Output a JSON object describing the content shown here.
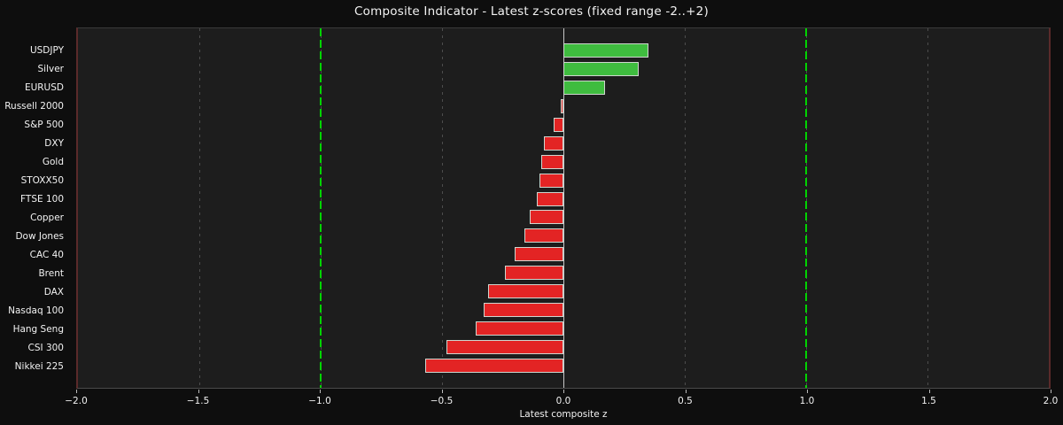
{
  "chart_data": {
    "type": "bar",
    "orientation": "horizontal",
    "title": "Composite Indicator - Latest z-scores (fixed range -2..+2)",
    "xlabel": "Latest composite z",
    "xlim": [
      -2,
      2
    ],
    "grid": true,
    "legend": null,
    "categories": [
      "USDJPY",
      "Silver",
      "EURUSD",
      "Russell 2000",
      "S&P 500",
      "DXY",
      "Gold",
      "STOXX50",
      "FTSE 100",
      "Copper",
      "Dow Jones",
      "CAC 40",
      "Brent",
      "DAX",
      "Nasdaq 100",
      "Hang Seng",
      "CSI 300",
      "Nikkei 225"
    ],
    "values": [
      0.35,
      0.31,
      0.17,
      -0.01,
      -0.04,
      -0.08,
      -0.09,
      -0.1,
      -0.11,
      -0.14,
      -0.16,
      -0.2,
      -0.24,
      -0.31,
      -0.33,
      -0.36,
      -0.48,
      -0.57
    ],
    "xticks": {
      "values": [
        -2.0,
        -1.5,
        -1.0,
        -0.5,
        0.0,
        0.5,
        1.0,
        1.5,
        2.0
      ],
      "labels": [
        "−2.0",
        "−1.5",
        "−1.0",
        "−0.5",
        "0.0",
        "0.5",
        "1.0",
        "1.5",
        "2.0"
      ]
    },
    "gridline_values": [
      -1.5,
      -1.0,
      -0.5,
      0.5,
      1.0,
      1.5
    ],
    "reference_lines": {
      "thresholds": [
        -1.0,
        1.0
      ],
      "zero": 0.0
    },
    "colors": {
      "positive_bar": "#3fbc3f",
      "negative_bar": "#e32424",
      "bar_edge": "#cfd6cf",
      "figure_background": "#0e0e0e",
      "plot_background": "#1d1d1d",
      "text": "#f2f2f2",
      "grid": "#4d4d4d",
      "threshold": "#00d400",
      "zero_line": "#c8c8c8",
      "spine_sides": "#5a2a2a"
    }
  }
}
